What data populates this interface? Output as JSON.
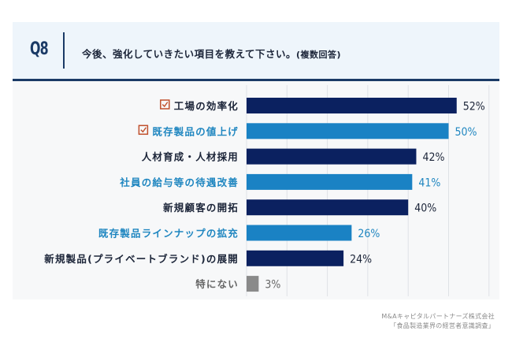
{
  "header": {
    "question_number": "Q8",
    "question_text": "今後、強化していきたい項目を教えて下さい。",
    "question_note": "(複数回答)"
  },
  "chart_data": {
    "type": "bar",
    "orientation": "horizontal",
    "title": "今後、強化していきたい項目を教えて下さい。(複数回答)",
    "xlabel": "",
    "ylabel": "",
    "unit": "%",
    "xlim": [
      0,
      60
    ],
    "grid": true,
    "grid_step": 10,
    "categories": [
      "工場の効率化",
      "既存製品の値上げ",
      "人材育成・人材採用",
      "社員の給与等の待遇改善",
      "新規顧客の開拓",
      "既存製品ラインナップの拡充",
      "新規製品(プライベートブランド)の展開",
      "特にない"
    ],
    "values": [
      52,
      50,
      42,
      41,
      40,
      26,
      24,
      3
    ],
    "value_labels": [
      "52%",
      "50%",
      "42%",
      "41%",
      "40%",
      "26%",
      "24%",
      "3%"
    ],
    "highlighted": [
      true,
      true,
      false,
      false,
      false,
      false,
      false,
      false
    ],
    "bar_styles": [
      "dark",
      "light",
      "dark",
      "light",
      "dark",
      "light",
      "dark",
      "grey"
    ]
  },
  "colors": {
    "dark": "#0b2160",
    "light": "#1a82c4",
    "grey": "#8a8a8a",
    "dark_text": "#1b2438",
    "light_text": "#1f86c0",
    "grey_text": "#666666",
    "checkbox": "#c0502c",
    "header_accent": "#1a3a66"
  },
  "credits": {
    "company": "M&Aキャピタルパートナーズ株式会社",
    "survey": "「食品製造業界の経営者意識調査」"
  }
}
